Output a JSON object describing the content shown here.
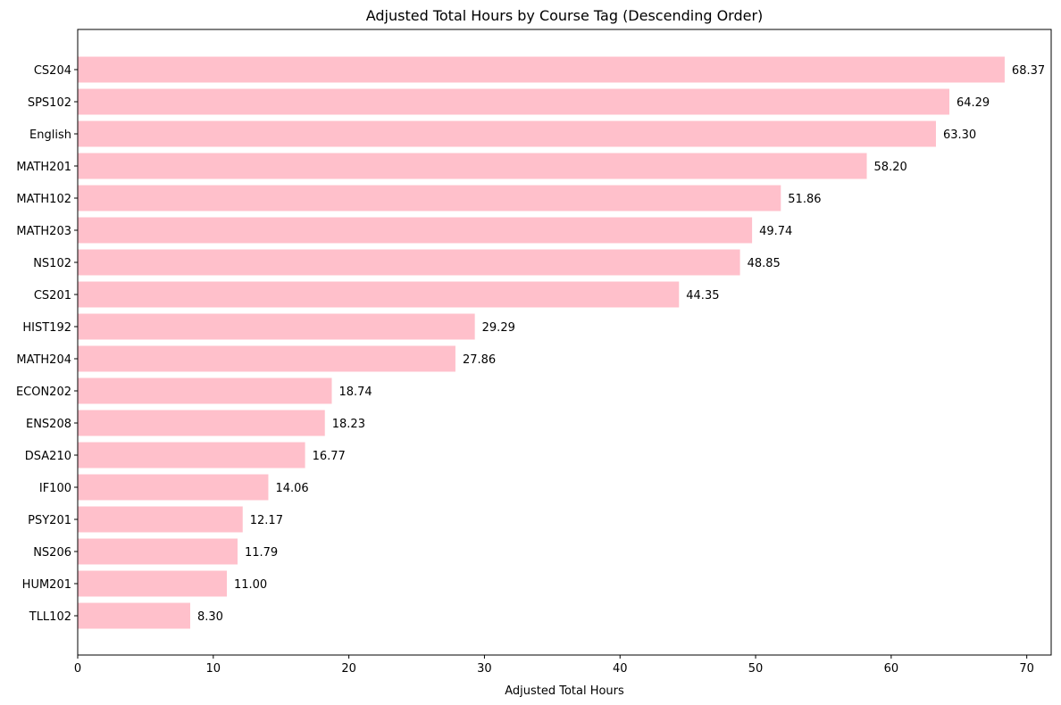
{
  "chart_data": {
    "type": "bar",
    "orientation": "horizontal",
    "title": "Adjusted Total Hours by Course Tag (Descending Order)",
    "xlabel": "Adjusted Total Hours",
    "ylabel": "",
    "xlim": [
      0,
      71.8
    ],
    "xticks": [
      0,
      10,
      20,
      30,
      40,
      50,
      60,
      70
    ],
    "categories": [
      "CS204",
      "SPS102",
      "English",
      "MATH201",
      "MATH102",
      "MATH203",
      "NS102",
      "CS201",
      "HIST192",
      "MATH204",
      "ECON202",
      "ENS208",
      "DSA210",
      "IF100",
      "PSY201",
      "NS206",
      "HUM201",
      "TLL102"
    ],
    "values": [
      68.37,
      64.29,
      63.3,
      58.2,
      51.86,
      49.74,
      48.85,
      44.35,
      29.29,
      27.86,
      18.74,
      18.23,
      16.77,
      14.06,
      12.17,
      11.79,
      11.0,
      8.3
    ],
    "value_labels": [
      "68.37",
      "64.29",
      "63.30",
      "58.20",
      "51.86",
      "49.74",
      "48.85",
      "44.35",
      "29.29",
      "27.86",
      "18.74",
      "18.23",
      "16.77",
      "14.06",
      "12.17",
      "11.79",
      "11.00",
      "8.30"
    ],
    "bar_color": "#ffc0cb",
    "grid": false,
    "legend": "none"
  }
}
